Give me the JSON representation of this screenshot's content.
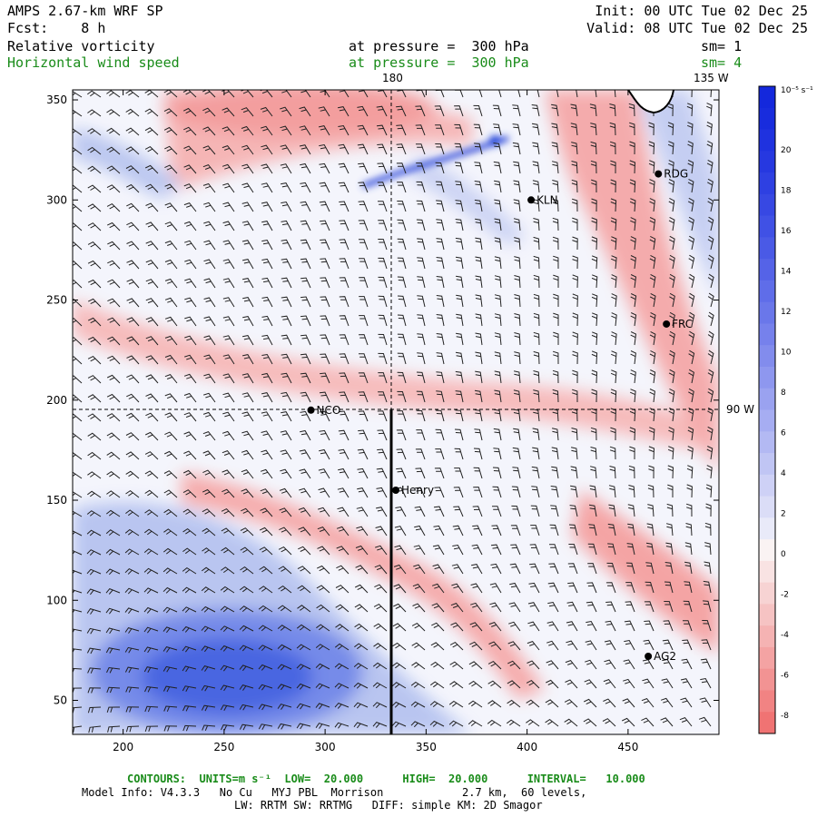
{
  "header": {
    "model": "AMPS 2.67-km WRF SP",
    "fcst_label": "Fcst:",
    "fcst_value": "8 h",
    "init": "Init: 00 UTC Tue 02 Dec 25",
    "valid": "Valid: 08 UTC Tue 02 Dec 25",
    "field1": "Relative vorticity",
    "field1_level": "at pressure =  300 hPa",
    "field1_sm": "sm= 1",
    "field2": "Horizontal wind speed",
    "field2_level": "at pressure =  300 hPa",
    "field2_sm": "sm= 4"
  },
  "map_labels": {
    "lon_180": "180",
    "lon_135w": "135 W",
    "lat_90s": "90 W"
  },
  "colors": {
    "positive_strong": "#1f3fd8",
    "negative_strong": "#f07a7a",
    "contour_green": "#1a8c1a"
  },
  "stations": [
    {
      "name": "NCO",
      "x": 293,
      "y": 195
    },
    {
      "name": "Henry",
      "x": 335,
      "y": 155
    },
    {
      "name": "KLN",
      "x": 402,
      "y": 300
    },
    {
      "name": "RDG",
      "x": 465,
      "y": 313
    },
    {
      "name": "FRC",
      "x": 469,
      "y": 238
    },
    {
      "name": "AG2",
      "x": 460,
      "y": 72
    }
  ],
  "chart_data": {
    "type": "heatmap",
    "x_ticks": [
      200,
      250,
      300,
      350,
      400,
      450
    ],
    "y_ticks": [
      50,
      100,
      150,
      200,
      250,
      300,
      350
    ],
    "xlim": [
      175,
      495
    ],
    "ylim": [
      33,
      355
    ],
    "colorbar_unit": "10⁻⁵ s⁻¹",
    "colorbar_ticks": [
      20,
      18,
      16,
      14,
      12,
      10,
      8,
      6,
      4,
      2,
      0,
      -2,
      -4,
      -6,
      -8
    ]
  },
  "footer": {
    "contours_line": "CONTOURS:  UNITS=m s⁻¹  LOW=  20.000      HIGH=  20.000      INTERVAL=   10.000",
    "model_info": "Model Info: V4.3.3   No Cu   MYJ PBL  Morrison            2.7 km,  60 levels,",
    "physics": "LW: RRTM SW: RRTMG   DIFF: simple KM: 2D Smagor"
  }
}
